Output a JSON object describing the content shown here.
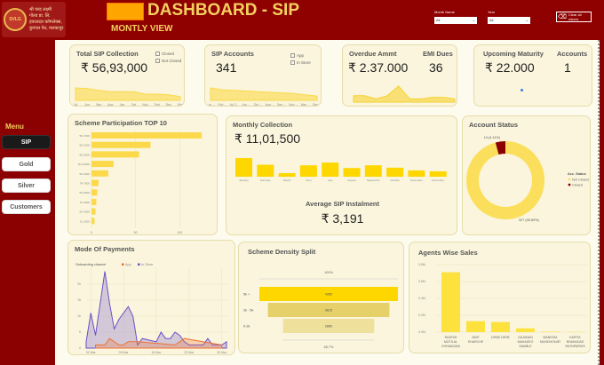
{
  "header": {
    "logo_text": [
      "श्री वरद लक्ष्मी",
      "गोल्ड प्रा. लि.",
      "हवालदार कॉम्प्लेक्स,",
      "कुणाल पेठ, मलकापुर"
    ],
    "logo_seal": "SVLG",
    "title": "DASHBOARD - SIP",
    "subtitle": "MONTLY VIEW",
    "month_slicer": {
      "label": "Month Name",
      "value": "All"
    },
    "year_slicer": {
      "label": "Year",
      "value": "All"
    },
    "clear_label": "Clear all slicers"
  },
  "menu": {
    "title": "Menu",
    "items": [
      {
        "label": "SIP",
        "active": true
      },
      {
        "label": "Gold"
      },
      {
        "label": "Silver"
      },
      {
        "label": "Customers"
      }
    ]
  },
  "colors": {
    "brand": "#8f0000",
    "accent": "#ffd700",
    "gold_text": "#f5d060",
    "instore": "#6a4fc9",
    "app": "#f07030"
  },
  "kpi": {
    "total_sip": {
      "title": "Total SIP Collection",
      "value": "₹ 56,93,000",
      "legend": [
        "Closed",
        "Not Closed"
      ],
      "spark_labels": [
        "Jul",
        "Jun",
        "Sep",
        "Aug",
        "Jan",
        "Oct",
        "Nov",
        "Feb",
        "Dec",
        "Mar"
      ],
      "spark": [
        10,
        9.5,
        8,
        7,
        7,
        7,
        5,
        5,
        4.5,
        3
      ]
    },
    "sip_accounts": {
      "title": "SIP Accounts",
      "value": "341",
      "legend": [
        "App",
        "In Store"
      ],
      "spark_labels": [
        "Jan ...",
        "Feb ...",
        "Jul 2...",
        "Jun ...",
        "Oct ...",
        "Aug ...",
        "Sep ...",
        "Nov ...",
        "Mar ...",
        "Dec ..."
      ],
      "spark": [
        10,
        8.5,
        8,
        7.5,
        7,
        6.5,
        6,
        5.5,
        4.5,
        3.5
      ]
    },
    "overdue": {
      "title": "Overdue Ammt",
      "value": "₹ 2.37.000",
      "emi_title": "EMI Dues",
      "emi_value": "36",
      "spark": [
        2,
        2,
        1,
        2,
        5,
        1,
        1,
        1.5,
        1.5,
        1
      ]
    },
    "maturity": {
      "title": "Upcoming Maturity",
      "value": "₹ 22.000",
      "accounts_title": "Accounts",
      "accounts_value": "1"
    }
  },
  "chart_data": [
    {
      "type": "bar",
      "orientation": "horizontal",
      "title": "Scheme Participation TOP 10",
      "categories": [
        "5N-7000",
        "5N-2000",
        "5N-5000",
        "5N-10000",
        "5N-3000",
        "7N-7000",
        "5N-8000",
        "5L-5000",
        "5N-2500",
        "5L-2000"
      ],
      "values": [
        125,
        67,
        54,
        25,
        19,
        8,
        6.5,
        5.5,
        4.5,
        3.5
      ],
      "xticks": [
        "0",
        "50",
        "100"
      ],
      "xlim": [
        0,
        130
      ]
    },
    {
      "type": "bar",
      "title": "Monthly Collection",
      "total": "₹ 11,01,500",
      "categories": [
        "January",
        "February",
        "March",
        "June",
        "July",
        "August",
        "September",
        "October",
        "November",
        "December"
      ],
      "values": [
        204000,
        131000,
        39000,
        125000,
        155000,
        95000,
        125000,
        99000,
        69000,
        59000
      ],
      "avg_title": "Average SIP Instalment",
      "avg_value": "₹ 3,191"
    },
    {
      "type": "pie",
      "title": "Account Status",
      "legend_title": "Acc. Status",
      "slices": [
        {
          "name": "Not Closed",
          "value": 327,
          "label": "327 (95.89%)",
          "color": "#fbdf5c"
        },
        {
          "name": "Closed",
          "value": 14,
          "label": "14 (4.11%)",
          "color": "#8b0000"
        }
      ]
    },
    {
      "type": "area",
      "title": "Mode Of Payments",
      "legend_title": "Onboarding channel",
      "xticks": [
        "02 Mar",
        "09 Mar",
        "16 Mar",
        "23 Mar",
        "30 Mar"
      ],
      "yticks": [
        "0",
        "5",
        "10",
        "15",
        "20"
      ],
      "ylim": [
        0,
        25
      ],
      "xlim": [
        1,
        31
      ],
      "series": [
        {
          "name": "In Store",
          "color": "#6a4fc9",
          "x": [
            1,
            2,
            3,
            5,
            6,
            7,
            8,
            10,
            11,
            12,
            13,
            16,
            17,
            18,
            19,
            20,
            21,
            22,
            23,
            26,
            27,
            28,
            30,
            31
          ],
          "y": [
            2,
            11,
            4,
            24,
            14,
            6,
            9,
            13,
            10,
            1,
            3,
            2,
            5,
            3,
            3,
            5,
            4,
            2,
            1,
            1,
            3,
            1,
            1,
            2
          ]
        },
        {
          "name": "App",
          "color": "#f07030",
          "x": [
            3,
            5,
            6,
            8,
            9,
            10,
            12,
            20,
            22,
            30
          ],
          "y": [
            1,
            1,
            3,
            1,
            1,
            2,
            2,
            1,
            3,
            1
          ]
        }
      ]
    },
    {
      "type": "funnel",
      "title": "Scheme Density Split",
      "top_label": "100%",
      "bottom_label": "65.7%",
      "categories": [
        "5k +",
        "2k - 5k",
        "0-2k"
      ],
      "values": [
        4350,
        3815,
        2860
      ]
    },
    {
      "type": "bar",
      "title": "Agents Wise Sales",
      "categories": [
        "RAJESH MOTILAL CHHANGANI",
        "AMIT KHARCHE",
        "DIPAK DESE",
        "GAJANAN MAHADEO SAMBLE",
        "MANISHA MUNDHOKAR",
        "KARTIK BHANUDAS RATNPARKHI"
      ],
      "values": [
        0.71,
        0.13,
        0.12,
        0.045,
        0.006,
        0.003
      ],
      "yticks": [
        "0.0M",
        "0.2M",
        "0.4M",
        "0.6M",
        "0.8M"
      ],
      "ylim": [
        0,
        0.8
      ]
    }
  ]
}
